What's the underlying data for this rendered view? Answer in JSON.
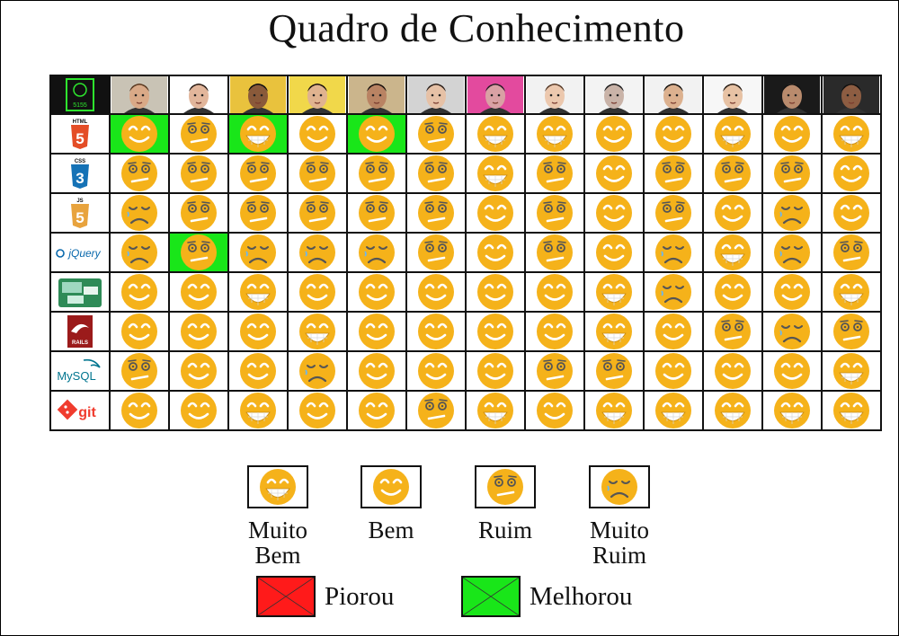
{
  "title": "Quadro de Conhecimento",
  "colors": {
    "face": "#f5b21a",
    "improved": "#19e619",
    "worsened": "#ff1a1a"
  },
  "team_logo_text": "5155",
  "students": [
    {
      "skin": "#d9a987",
      "hair": "#5a3a22",
      "bg": "#c9c3b5"
    },
    {
      "skin": "#e2b69b",
      "hair": "#2a1d16",
      "bg": "#ffffff"
    },
    {
      "skin": "#8a5a3a",
      "hair": "#111111",
      "bg": "#e9c23d"
    },
    {
      "skin": "#e0b38f",
      "hair": "#1c120d",
      "bg": "#f1d84a"
    },
    {
      "skin": "#b98363",
      "hair": "#1a120e",
      "bg": "#cbb58c"
    },
    {
      "skin": "#e6c1a6",
      "hair": "#2d221c",
      "bg": "#d3d3d3"
    },
    {
      "skin": "#d9a1a4",
      "hair": "#2b1b27",
      "bg": "#e34a9e"
    },
    {
      "skin": "#ecc8ae",
      "hair": "#5a3e2c",
      "bg": "#f2f2f2"
    },
    {
      "skin": "#c9b3a8",
      "hair": "#1f1f1f",
      "bg": "#f3f3f3"
    },
    {
      "skin": "#dcb18f",
      "hair": "#1a1612",
      "bg": "#f2f2f2"
    },
    {
      "skin": "#e7c2a4",
      "hair": "#2a1f17",
      "bg": "#f7f7f7"
    },
    {
      "skin": "#b98b6d",
      "hair": "#121212",
      "bg": "#1a1a1a"
    },
    {
      "skin": "#8d5d42",
      "hair": "#0f0f0f",
      "bg": "#2a2a2a"
    }
  ],
  "technologies": [
    {
      "name": "html5-icon",
      "label": "HTML",
      "glyph": "5"
    },
    {
      "name": "css3-icon",
      "label": "CSS",
      "glyph": "3"
    },
    {
      "name": "js-icon",
      "label": "JS",
      "glyph": "5"
    },
    {
      "name": "jquery-icon",
      "label": "jQuery",
      "glyph": ""
    },
    {
      "name": "diagram-tool-icon",
      "label": "",
      "glyph": ""
    },
    {
      "name": "rails-icon",
      "label": "RAILS",
      "glyph": ""
    },
    {
      "name": "mysql-icon",
      "label": "MySQL",
      "glyph": ""
    },
    {
      "name": "git-icon",
      "label": "git",
      "glyph": ""
    }
  ],
  "grid": [
    [
      "B",
      "R",
      "MB",
      "B",
      "B",
      "R",
      "MB",
      "MB",
      "B",
      "B",
      "MB",
      "B",
      "MB"
    ],
    [
      "R",
      "R",
      "R",
      "R",
      "R",
      "R",
      "MB",
      "R",
      "B",
      "R",
      "R",
      "R",
      "B"
    ],
    [
      "MR",
      "R",
      "R",
      "R",
      "R",
      "R",
      "B",
      "R",
      "B",
      "R",
      "B",
      "MR",
      "B"
    ],
    [
      "MR",
      "R",
      "MR",
      "MR",
      "MR",
      "R",
      "B",
      "R",
      "B",
      "MR",
      "MB",
      "MR",
      "R"
    ],
    [
      "B",
      "B",
      "MB",
      "B",
      "B",
      "B",
      "B",
      "B",
      "MB",
      "MR",
      "B",
      "B",
      "MB"
    ],
    [
      "B",
      "B",
      "B",
      "MB",
      "B",
      "B",
      "B",
      "B",
      "MB",
      "B",
      "R",
      "MR",
      "R"
    ],
    [
      "R",
      "B",
      "B",
      "MR",
      "B",
      "B",
      "B",
      "R",
      "R",
      "B",
      "B",
      "B",
      "MB"
    ],
    [
      "B",
      "B",
      "MB",
      "B",
      "B",
      "R",
      "MB",
      "B",
      "MB",
      "MB",
      "MB",
      "MB",
      "MB"
    ]
  ],
  "changes": [
    [
      0,
      0,
      "improved"
    ],
    [
      0,
      2,
      "improved"
    ],
    [
      0,
      4,
      "improved"
    ],
    [
      3,
      1,
      "improved"
    ]
  ],
  "legend": {
    "items": [
      {
        "level": "MB",
        "label": "Muito\nBem"
      },
      {
        "level": "B",
        "label": "Bem"
      },
      {
        "level": "R",
        "label": "Ruim"
      },
      {
        "level": "MR",
        "label": "Muito\nRuim"
      }
    ],
    "worsened_label": "Piorou",
    "improved_label": "Melhorou"
  }
}
